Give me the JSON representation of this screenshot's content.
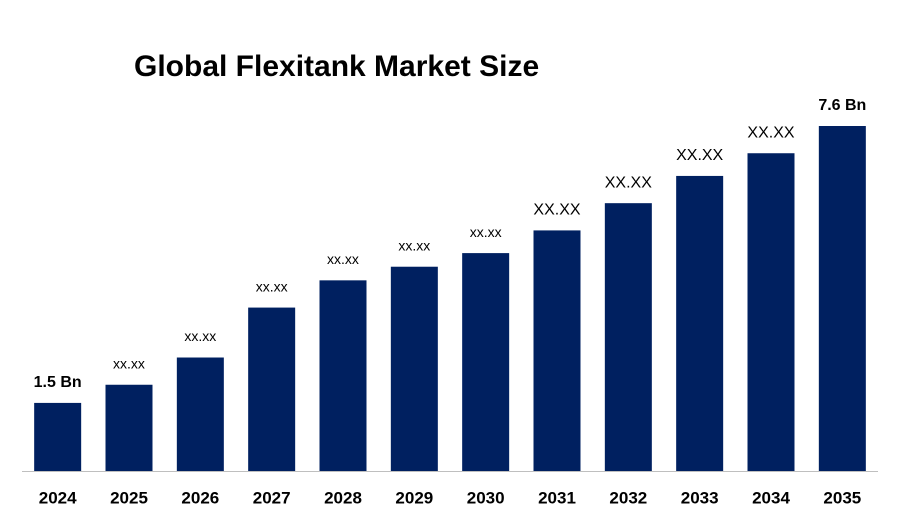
{
  "chart_data": {
    "type": "bar",
    "title": "Global Flexitank Market Size",
    "categories": [
      "2024",
      "2025",
      "2026",
      "2027",
      "2028",
      "2029",
      "2030",
      "2031",
      "2032",
      "2033",
      "2034",
      "2035"
    ],
    "values": [
      1.5,
      1.9,
      2.5,
      3.6,
      4.2,
      4.5,
      4.8,
      5.3,
      5.9,
      6.5,
      7.0,
      7.6
    ],
    "value_labels": [
      "1.5 Bn",
      "xx.xx",
      "xx.xx",
      "xx.xx",
      "xx.xx",
      "xx.xx",
      "xx.xx",
      "XX.XX",
      "XX.XX",
      "XX.XX",
      "XX.XX",
      "7.6 Bn"
    ],
    "color": "#002060"
  }
}
